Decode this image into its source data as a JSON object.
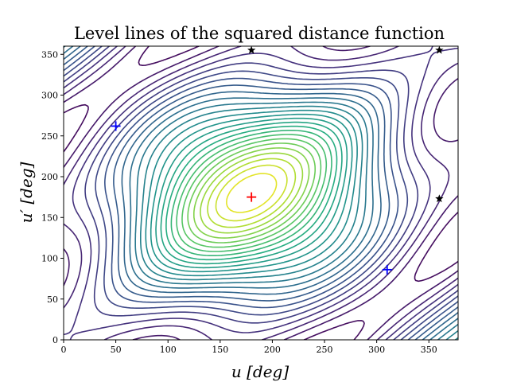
{
  "chart_data": {
    "type": "contour",
    "title": "Level lines of the squared distance function",
    "xlabel": "u [deg]",
    "ylabel": "u′ [deg]",
    "xlim": [
      0,
      378
    ],
    "ylim": [
      0,
      360
    ],
    "xticks": [
      0,
      50,
      100,
      150,
      200,
      250,
      300,
      350
    ],
    "yticks": [
      0,
      50,
      100,
      150,
      200,
      250,
      300,
      350
    ],
    "grid": false,
    "legend": "none",
    "colormap": "viridis",
    "markers": [
      {
        "kind": "plus",
        "color": "#ff0000",
        "x": 180,
        "y": 175
      },
      {
        "kind": "plus",
        "color": "#0000ff",
        "x": 50,
        "y": 262
      },
      {
        "kind": "plus",
        "color": "#0000ff",
        "x": 310,
        "y": 86
      },
      {
        "kind": "star",
        "color": "#000000",
        "x": 180,
        "y": 355
      },
      {
        "kind": "star",
        "color": "#000000",
        "x": 360,
        "y": 355
      },
      {
        "kind": "star",
        "color": "#000000",
        "x": 360,
        "y": 173
      }
    ]
  }
}
